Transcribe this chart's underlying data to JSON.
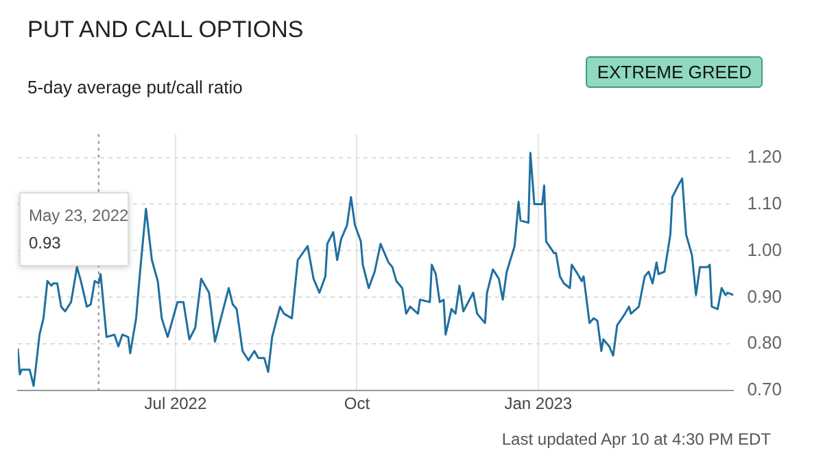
{
  "chart_data": {
    "type": "line",
    "title": "PUT AND CALL OPTIONS",
    "subtitle": "5-day average put/call ratio",
    "x": [
      "2022-04-12",
      "2022-04-13",
      "2022-04-14",
      "2022-04-18",
      "2022-04-20",
      "2022-04-21",
      "2022-04-23",
      "2022-04-25",
      "2022-04-27",
      "2022-04-29",
      "2022-04-30",
      "2022-05-02",
      "2022-05-04",
      "2022-05-06",
      "2022-05-09",
      "2022-05-12",
      "2022-05-14",
      "2022-05-17",
      "2022-05-19",
      "2022-05-21",
      "2022-05-23",
      "2022-05-24",
      "2022-05-27",
      "2022-05-31",
      "2022-06-02",
      "2022-06-04",
      "2022-06-07",
      "2022-06-08",
      "2022-06-11",
      "2022-06-13",
      "2022-06-16",
      "2022-06-19",
      "2022-06-22",
      "2022-06-24",
      "2022-06-27",
      "2022-07-02",
      "2022-07-05",
      "2022-07-08",
      "2022-07-11",
      "2022-07-14",
      "2022-07-18",
      "2022-07-21",
      "2022-07-24",
      "2022-07-28",
      "2022-07-30",
      "2022-08-01",
      "2022-08-04",
      "2022-08-07",
      "2022-08-10",
      "2022-08-12",
      "2022-08-15",
      "2022-08-17",
      "2022-08-19",
      "2022-08-23",
      "2022-08-25",
      "2022-08-29",
      "2022-09-01",
      "2022-09-06",
      "2022-09-09",
      "2022-09-12",
      "2022-09-15",
      "2022-09-16",
      "2022-09-19",
      "2022-09-21",
      "2022-09-23",
      "2022-09-26",
      "2022-09-28",
      "2022-09-30",
      "2022-10-03",
      "2022-10-04",
      "2022-10-07",
      "2022-10-10",
      "2022-10-13",
      "2022-10-17",
      "2022-10-19",
      "2022-10-21",
      "2022-10-24",
      "2022-10-26",
      "2022-10-28",
      "2022-11-01",
      "2022-11-02",
      "2022-11-07",
      "2022-11-08",
      "2022-11-10",
      "2022-11-12",
      "2022-11-14",
      "2022-11-15",
      "2022-11-18",
      "2022-11-20",
      "2022-11-22",
      "2022-11-24",
      "2022-11-29",
      "2022-12-01",
      "2022-12-05",
      "2022-12-06",
      "2022-12-09",
      "2022-12-12",
      "2022-12-14",
      "2022-12-16",
      "2022-12-20",
      "2022-12-22",
      "2022-12-23",
      "2022-12-27",
      "2022-12-28",
      "2022-12-30",
      "2023-01-03",
      "2023-01-04",
      "2023-01-05",
      "2023-01-09",
      "2023-01-10",
      "2023-01-12",
      "2023-01-14",
      "2023-01-17",
      "2023-01-18",
      "2023-01-21",
      "2023-01-23",
      "2023-01-24",
      "2023-01-27",
      "2023-01-29",
      "2023-01-31",
      "2023-02-02",
      "2023-02-03",
      "2023-02-06",
      "2023-02-08",
      "2023-02-10",
      "2023-02-14",
      "2023-02-16",
      "2023-02-17",
      "2023-02-21",
      "2023-02-24",
      "2023-02-26",
      "2023-02-28",
      "2023-03-02",
      "2023-03-03",
      "2023-03-06",
      "2023-03-09",
      "2023-03-10",
      "2023-03-13",
      "2023-03-15",
      "2023-03-17",
      "2023-03-20",
      "2023-03-22",
      "2023-03-24",
      "2023-03-28",
      "2023-03-29",
      "2023-03-30",
      "2023-04-02",
      "2023-04-04",
      "2023-04-06",
      "2023-04-07",
      "2023-04-10"
    ],
    "series": [
      {
        "color": "#1f6f9f",
        "values": [
          0.79,
          0.735,
          0.745,
          0.745,
          0.71,
          0.745,
          0.82,
          0.855,
          0.935,
          0.925,
          0.93,
          0.93,
          0.88,
          0.87,
          0.89,
          0.965,
          0.935,
          0.88,
          0.885,
          0.935,
          0.93,
          0.95,
          0.815,
          0.82,
          0.795,
          0.82,
          0.815,
          0.78,
          0.855,
          0.955,
          1.09,
          0.98,
          0.935,
          0.855,
          0.815,
          0.89,
          0.89,
          0.81,
          0.835,
          0.94,
          0.91,
          0.805,
          0.855,
          0.92,
          0.885,
          0.875,
          0.785,
          0.765,
          0.785,
          0.77,
          0.77,
          0.74,
          0.815,
          0.88,
          0.865,
          0.855,
          0.98,
          1.01,
          0.94,
          0.91,
          0.945,
          1.015,
          1.04,
          0.98,
          1.025,
          1.055,
          1.115,
          1.055,
          1.02,
          0.97,
          0.92,
          0.955,
          1.015,
          0.975,
          0.965,
          0.935,
          0.92,
          0.865,
          0.88,
          0.865,
          0.895,
          0.89,
          0.97,
          0.95,
          0.89,
          0.895,
          0.82,
          0.875,
          0.865,
          0.925,
          0.87,
          0.91,
          0.865,
          0.845,
          0.91,
          0.96,
          0.94,
          0.895,
          0.955,
          1.01,
          1.105,
          1.065,
          1.06,
          1.21,
          1.1,
          1.1,
          1.14,
          1.02,
          0.995,
          0.995,
          0.945,
          0.93,
          0.92,
          0.97,
          0.95,
          0.935,
          0.945,
          0.845,
          0.855,
          0.85,
          0.785,
          0.81,
          0.795,
          0.775,
          0.84,
          0.865,
          0.88,
          0.865,
          0.88,
          0.945,
          0.955,
          0.93,
          0.975,
          0.95,
          0.955,
          1.035,
          1.115,
          1.14,
          1.155,
          1.035,
          0.99,
          0.905,
          0.965,
          0.965,
          0.97,
          0.88,
          0.875,
          0.92,
          0.905,
          0.91,
          0.905
        ]
      }
    ],
    "xlim": [
      "2022-04-12",
      "2023-04-10"
    ],
    "xticks": [
      {
        "value": "2022-07-01",
        "label": "Jul 2022"
      },
      {
        "value": "2022-10-01",
        "label": "Oct"
      },
      {
        "value": "2023-01-01",
        "label": "Jan 2023"
      }
    ],
    "ylim": [
      0.7,
      1.25
    ],
    "yticks": [
      {
        "value": 0.7,
        "label": "0.70"
      },
      {
        "value": 0.8,
        "label": "0.80"
      },
      {
        "value": 0.9,
        "label": "0.90"
      },
      {
        "value": 1.0,
        "label": "1.00"
      },
      {
        "value": 1.1,
        "label": "1.10"
      },
      {
        "value": 1.2,
        "label": "1.20"
      }
    ],
    "grid": true,
    "legend": false,
    "marker": "none",
    "line_style": "solid",
    "ref_lines": [
      {
        "axis": "x",
        "value": "2022-05-23",
        "line_style": "dotted",
        "color": "#999999"
      }
    ],
    "annotations": [
      "EXTREME GREED",
      "Last updated Apr 10 at 4:30 PM EDT",
      "May 23, 2022",
      "0.93"
    ]
  }
}
